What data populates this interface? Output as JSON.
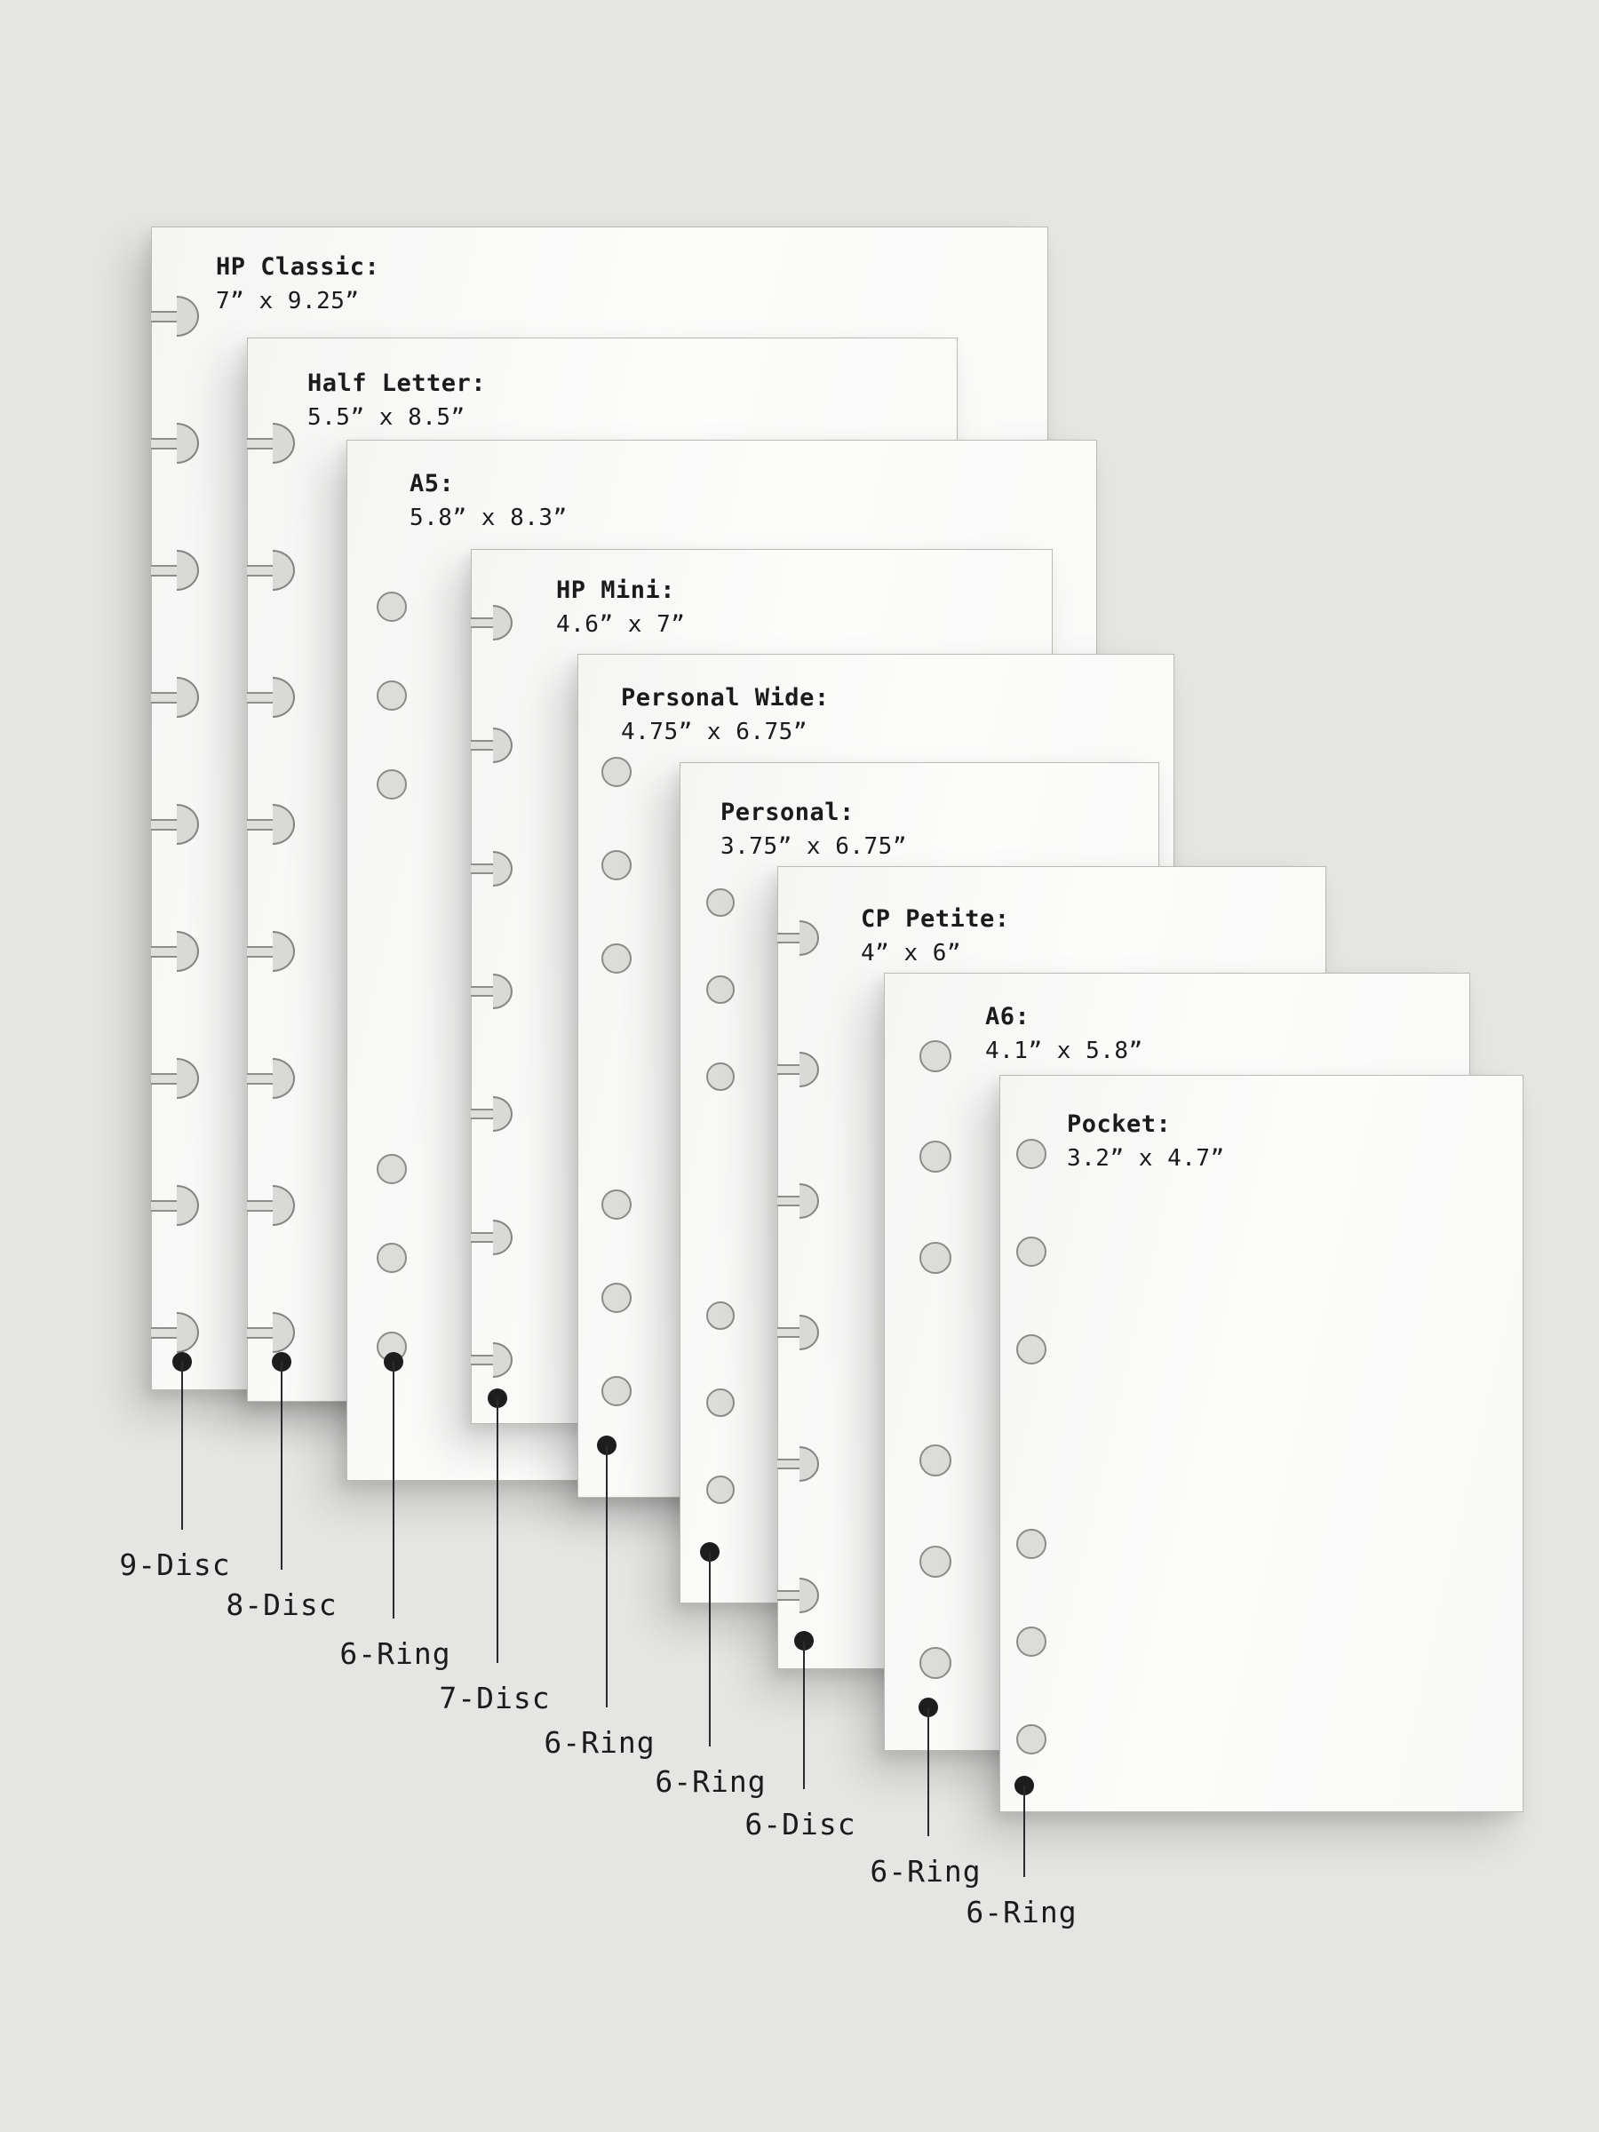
{
  "figure": {
    "description": "Planner paper size comparison chart",
    "colors": {
      "background": "#e5e5e3",
      "sheet": "#fbfbfa",
      "sheet_edge": "#b9b9b6",
      "hole_fill": "#dcdcda",
      "hole_outline": "#8b8b88",
      "annotation": "#1d1d1d"
    }
  },
  "sheets": [
    {
      "title": "HP Classic:",
      "size": "7” x 9.25”",
      "binding": "9-Disc",
      "hole_style": "disc",
      "hole_count": 9
    },
    {
      "title": "Half Letter:",
      "size": "5.5” x 8.5”",
      "binding": "8-Disc",
      "hole_style": "disc",
      "hole_count": 8
    },
    {
      "title": "A5:",
      "size": "5.8” x 8.3”",
      "binding": "6-Ring",
      "hole_style": "ring",
      "hole_count": 6
    },
    {
      "title": "HP Mini:",
      "size": "4.6” x 7”",
      "binding": "7-Disc",
      "hole_style": "disc",
      "hole_count": 7
    },
    {
      "title": "Personal Wide:",
      "size": "4.75” x 6.75”",
      "binding": "6-Ring",
      "hole_style": "ring",
      "hole_count": 6
    },
    {
      "title": "Personal:",
      "size": "3.75” x 6.75”",
      "binding": "6-Ring",
      "hole_style": "ring",
      "hole_count": 6
    },
    {
      "title": "CP Petite:",
      "size": "4” x 6”",
      "binding": "6-Disc",
      "hole_style": "disc",
      "hole_count": 6
    },
    {
      "title": "A6:",
      "size": "4.1” x 5.8”",
      "binding": "6-Ring",
      "hole_style": "ring",
      "hole_count": 6
    },
    {
      "title": "Pocket:",
      "size": "3.2” x 4.7”",
      "binding": "6-Ring",
      "hole_style": "ring",
      "hole_count": 6
    }
  ]
}
